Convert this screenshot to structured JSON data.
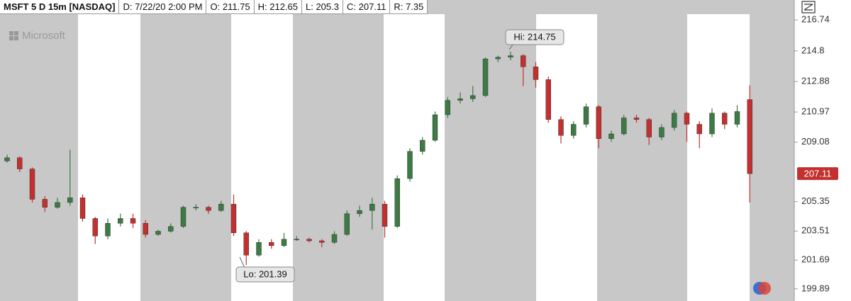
{
  "header": [
    "MSFT 5 D 15m [NASDAQ]",
    "D: 7/22/20 2:00 PM",
    "O: 211.75",
    "H: 212.65",
    "L: 205.3",
    "C: 207.11",
    "R: 7.35"
  ],
  "chart_data": {
    "type": "candlestick",
    "watermark": "Microsoft",
    "annotations": {
      "high": "Hi: 214.75",
      "low": "Lo: 201.39"
    },
    "categories": [
      null,
      null,
      null,
      null,
      null,
      null,
      null,
      null,
      null,
      null,
      null,
      null,
      null,
      null,
      null,
      null,
      null,
      null,
      null,
      null,
      null,
      null,
      null,
      null,
      null,
      null,
      null,
      null,
      null,
      null,
      null,
      null,
      null,
      null,
      null,
      null,
      null,
      null,
      null,
      null,
      null,
      null,
      null,
      null,
      null,
      null,
      null,
      null,
      null,
      null,
      null,
      null,
      null,
      null,
      null,
      null,
      null,
      null,
      null,
      null
    ],
    "open": [
      207.9,
      208.1,
      207.4,
      205.5,
      205.0,
      205.3,
      205.6,
      204.3,
      203.2,
      204.0,
      204.3,
      204.0,
      203.3,
      203.5,
      203.8,
      205.0,
      205.0,
      204.8,
      205.2,
      203.4,
      202.0,
      202.8,
      202.6,
      203.0,
      203.0,
      202.9,
      202.8,
      203.3,
      204.6,
      204.8,
      205.2,
      203.8,
      206.8,
      208.5,
      209.2,
      210.8,
      211.7,
      211.8,
      212.0,
      214.3,
      214.4,
      214.5,
      213.8,
      213.0,
      210.5,
      209.5,
      210.2,
      211.3,
      209.3,
      209.6,
      210.6,
      210.5,
      209.4,
      210.0,
      210.9,
      210.2,
      209.6,
      210.9,
      210.2,
      211.75
    ],
    "high": [
      208.3,
      208.2,
      207.5,
      205.7,
      205.6,
      208.6,
      205.8,
      204.4,
      204.3,
      204.6,
      204.6,
      204.2,
      203.6,
      204.0,
      205.1,
      205.2,
      205.1,
      205.4,
      205.8,
      203.5,
      203.0,
      203.0,
      203.4,
      203.2,
      203.1,
      203.0,
      203.5,
      204.8,
      205.1,
      205.6,
      205.4,
      207.0,
      208.7,
      209.4,
      211.0,
      211.9,
      212.2,
      212.6,
      214.4,
      214.5,
      214.75,
      214.6,
      214.1,
      213.2,
      210.7,
      210.4,
      211.5,
      211.4,
      209.8,
      210.8,
      210.8,
      210.6,
      210.2,
      211.1,
      211.0,
      210.4,
      211.2,
      211.0,
      211.4,
      212.65
    ],
    "low": [
      207.8,
      207.2,
      205.3,
      204.7,
      204.9,
      205.1,
      204.1,
      202.7,
      203.0,
      203.8,
      203.7,
      203.1,
      203.2,
      203.4,
      203.7,
      204.8,
      204.6,
      204.7,
      203.2,
      201.39,
      201.9,
      202.4,
      202.5,
      202.9,
      202.8,
      202.5,
      202.7,
      203.2,
      204.4,
      203.6,
      203.1,
      203.7,
      206.6,
      208.3,
      209.1,
      210.6,
      211.5,
      211.6,
      211.9,
      214.1,
      214.2,
      212.6,
      212.5,
      210.3,
      209.0,
      209.3,
      210.0,
      208.7,
      209.1,
      209.5,
      210.3,
      208.9,
      209.2,
      209.8,
      209.1,
      208.7,
      209.4,
      209.9,
      210.0,
      205.3
    ],
    "close": [
      208.1,
      207.4,
      205.5,
      205.0,
      205.3,
      205.6,
      204.3,
      203.2,
      204.0,
      204.3,
      204.0,
      203.3,
      203.5,
      203.8,
      205.0,
      205.0,
      204.8,
      205.2,
      203.4,
      202.0,
      202.8,
      202.6,
      203.0,
      203.0,
      202.9,
      202.8,
      203.3,
      204.6,
      204.8,
      205.2,
      203.8,
      206.8,
      208.5,
      209.2,
      210.8,
      211.7,
      211.8,
      212.0,
      214.3,
      214.4,
      214.5,
      213.8,
      213.0,
      210.5,
      209.5,
      210.2,
      211.3,
      209.3,
      209.6,
      210.6,
      210.5,
      209.4,
      210.0,
      210.9,
      210.2,
      209.6,
      210.9,
      210.2,
      211.0,
      207.11
    ],
    "up_color": "#3d7a45",
    "down_color": "#c2312f",
    "ylim": [
      199.35,
      217.1
    ],
    "yticks": [
      216.74,
      214.8,
      212.88,
      210.97,
      209.08,
      205.35,
      203.51,
      201.69,
      199.89
    ]
  }
}
